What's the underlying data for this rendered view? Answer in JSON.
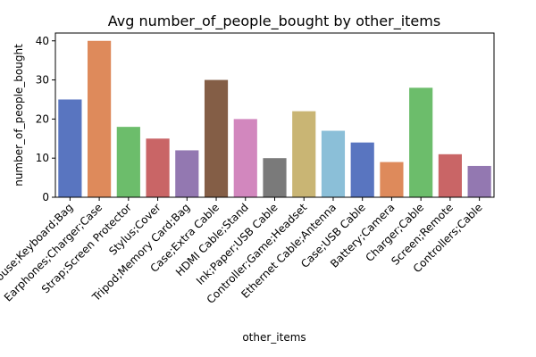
{
  "chart_data": {
    "type": "bar",
    "title": "Avg number_of_people_bought by other_items",
    "xlabel": "other_items",
    "ylabel": "number_of_people_bought",
    "ylim": [
      0,
      42
    ],
    "yticks": [
      0,
      10,
      20,
      30,
      40
    ],
    "grid": false,
    "categories": [
      "Mouse;Keyboard;Bag",
      "Earphones;Charger;Case",
      "Strap;Screen Protector",
      "Stylus;Cover",
      "Tripod;Memory Card;Bag",
      "Case;Extra Cable",
      "HDMI Cable;Stand",
      "Ink;Paper;USB Cable",
      "Controller;Game;Headset",
      "Ethernet Cable;Antenna",
      "Case;USB Cable",
      "Battery;Camera",
      "Charger;Cable",
      "Screen;Remote",
      "Controllers;Cable"
    ],
    "values": [
      25,
      40,
      18,
      15,
      12,
      30,
      20,
      10,
      22,
      17,
      14,
      9,
      28,
      11,
      8
    ],
    "colors": [
      "#5975c0",
      "#de8a5b",
      "#6cbd6b",
      "#c96566",
      "#9378b1",
      "#845e46",
      "#d287be",
      "#7a7a7a",
      "#c9b574",
      "#8bbfd8",
      "#5975c0",
      "#de8a5b",
      "#6cbd6b",
      "#c96566",
      "#9378b1"
    ]
  }
}
